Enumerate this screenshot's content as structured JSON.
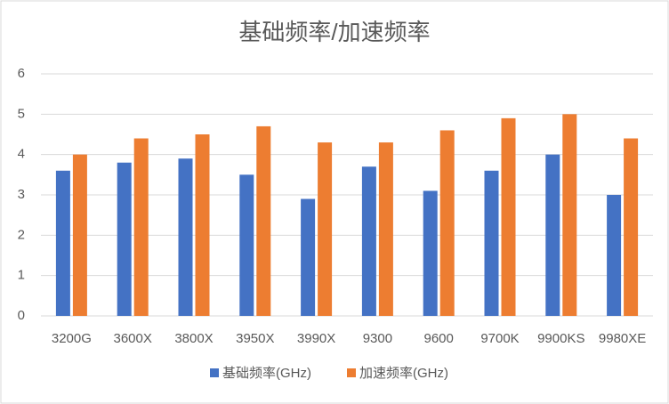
{
  "chart_data": {
    "type": "bar",
    "title": "基础频率/加速频率",
    "categories": [
      "3200G",
      "3600X",
      "3800X",
      "3950X",
      "3990X",
      "9300",
      "9600",
      "9700K",
      "9900KS",
      "9980XE"
    ],
    "series": [
      {
        "name": "基础频率(GHz)",
        "color": "#4472c4",
        "values": [
          3.6,
          3.8,
          3.9,
          3.5,
          2.9,
          3.7,
          3.1,
          3.6,
          4.0,
          3.0
        ]
      },
      {
        "name": "加速频率(GHz)",
        "color": "#ed7d31",
        "values": [
          4.0,
          4.4,
          4.5,
          4.7,
          4.3,
          4.3,
          4.6,
          4.9,
          5.0,
          4.4
        ]
      }
    ],
    "ylim": [
      0,
      6
    ],
    "yticks": [
      0,
      1,
      2,
      3,
      4,
      5,
      6
    ],
    "grid": true,
    "legend": "bottom"
  }
}
